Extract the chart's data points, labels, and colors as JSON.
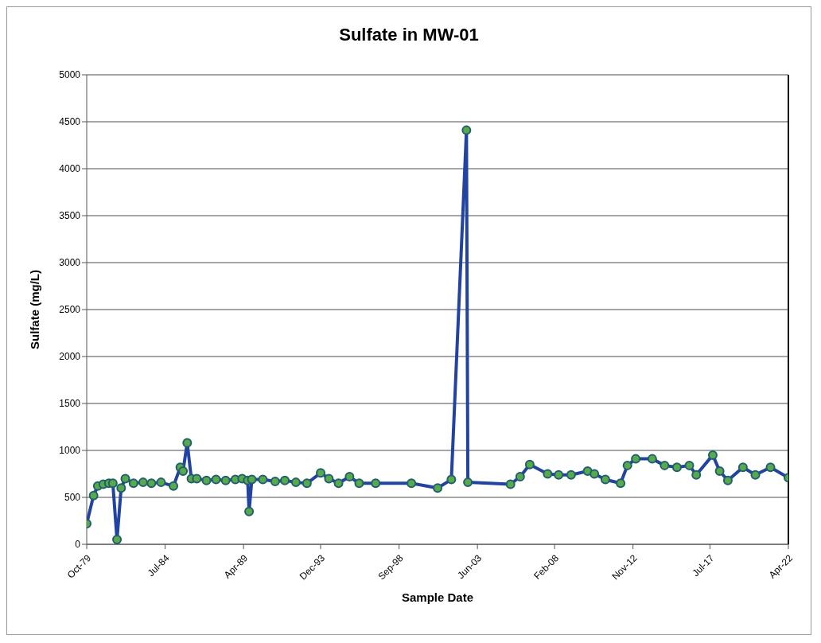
{
  "chart_data": {
    "type": "line",
    "title": "Sulfate in MW-01",
    "xlabel": "Sample Date",
    "ylabel": "Sulfate (mg/L)",
    "x": [
      "1979-10",
      "1980-03",
      "1980-06",
      "1980-10",
      "1981-02",
      "1981-05",
      "1981-08",
      "1981-11",
      "1982-02",
      "1982-08",
      "1983-03",
      "1983-09",
      "1984-04",
      "1985-01",
      "1985-06",
      "1985-08",
      "1985-11",
      "1986-02",
      "1986-06",
      "1987-01",
      "1987-08",
      "1988-03",
      "1988-10",
      "1989-03",
      "1989-07",
      "1989-08",
      "1989-10",
      "1990-06",
      "1991-03",
      "1991-10",
      "1992-06",
      "1993-02",
      "1993-12",
      "1994-06",
      "1995-01",
      "1995-09",
      "1996-04",
      "1997-04",
      "1999-06",
      "2001-01",
      "2001-11",
      "2002-10",
      "2002-11",
      "2005-06",
      "2006-01",
      "2006-08",
      "2007-09",
      "2008-05",
      "2009-02",
      "2010-02",
      "2010-07",
      "2011-03",
      "2012-02",
      "2012-07",
      "2013-01",
      "2014-01",
      "2014-10",
      "2015-07",
      "2016-04",
      "2016-09",
      "2017-09",
      "2018-02",
      "2018-08",
      "2019-07",
      "2020-04",
      "2021-03",
      "2022-04"
    ],
    "series": [
      {
        "color": "#2343a0",
        "values": [
          220,
          520,
          620,
          640,
          650,
          650,
          50,
          600,
          700,
          650,
          660,
          650,
          660,
          620,
          820,
          780,
          1080,
          700,
          700,
          680,
          690,
          680,
          690,
          700,
          680,
          350,
          690,
          690,
          670,
          680,
          660,
          650,
          760,
          700,
          650,
          720,
          650,
          650,
          650,
          600,
          690,
          4410,
          660,
          640,
          720,
          850,
          750,
          740,
          740,
          780,
          750,
          690,
          650,
          840,
          910,
          910,
          840,
          820,
          840,
          740,
          950,
          780,
          680,
          820,
          740,
          820,
          710
        ]
      }
    ],
    "xlim": [
      "1979-10",
      "2022-04"
    ],
    "xticks": [
      {
        "value": "1979-10",
        "label": "Oct-79"
      },
      {
        "value": "1984-07",
        "label": "Jul-84"
      },
      {
        "value": "1989-04",
        "label": "Apr-89"
      },
      {
        "value": "1993-12",
        "label": "Dec-93"
      },
      {
        "value": "1998-09",
        "label": "Sep-98"
      },
      {
        "value": "2003-06",
        "label": "Jun-03"
      },
      {
        "value": "2008-02",
        "label": "Feb-08"
      },
      {
        "value": "2012-11",
        "label": "Nov-12"
      },
      {
        "value": "2017-07",
        "label": "Jul-17"
      },
      {
        "value": "2022-04",
        "label": "Apr-22"
      }
    ],
    "ylim": [
      0,
      5000
    ],
    "yticks": [
      0,
      500,
      1000,
      1500,
      2000,
      2500,
      3000,
      3500,
      4000,
      4500,
      5000
    ],
    "grid": "y",
    "marker": "circle",
    "line_style": "solid"
  }
}
